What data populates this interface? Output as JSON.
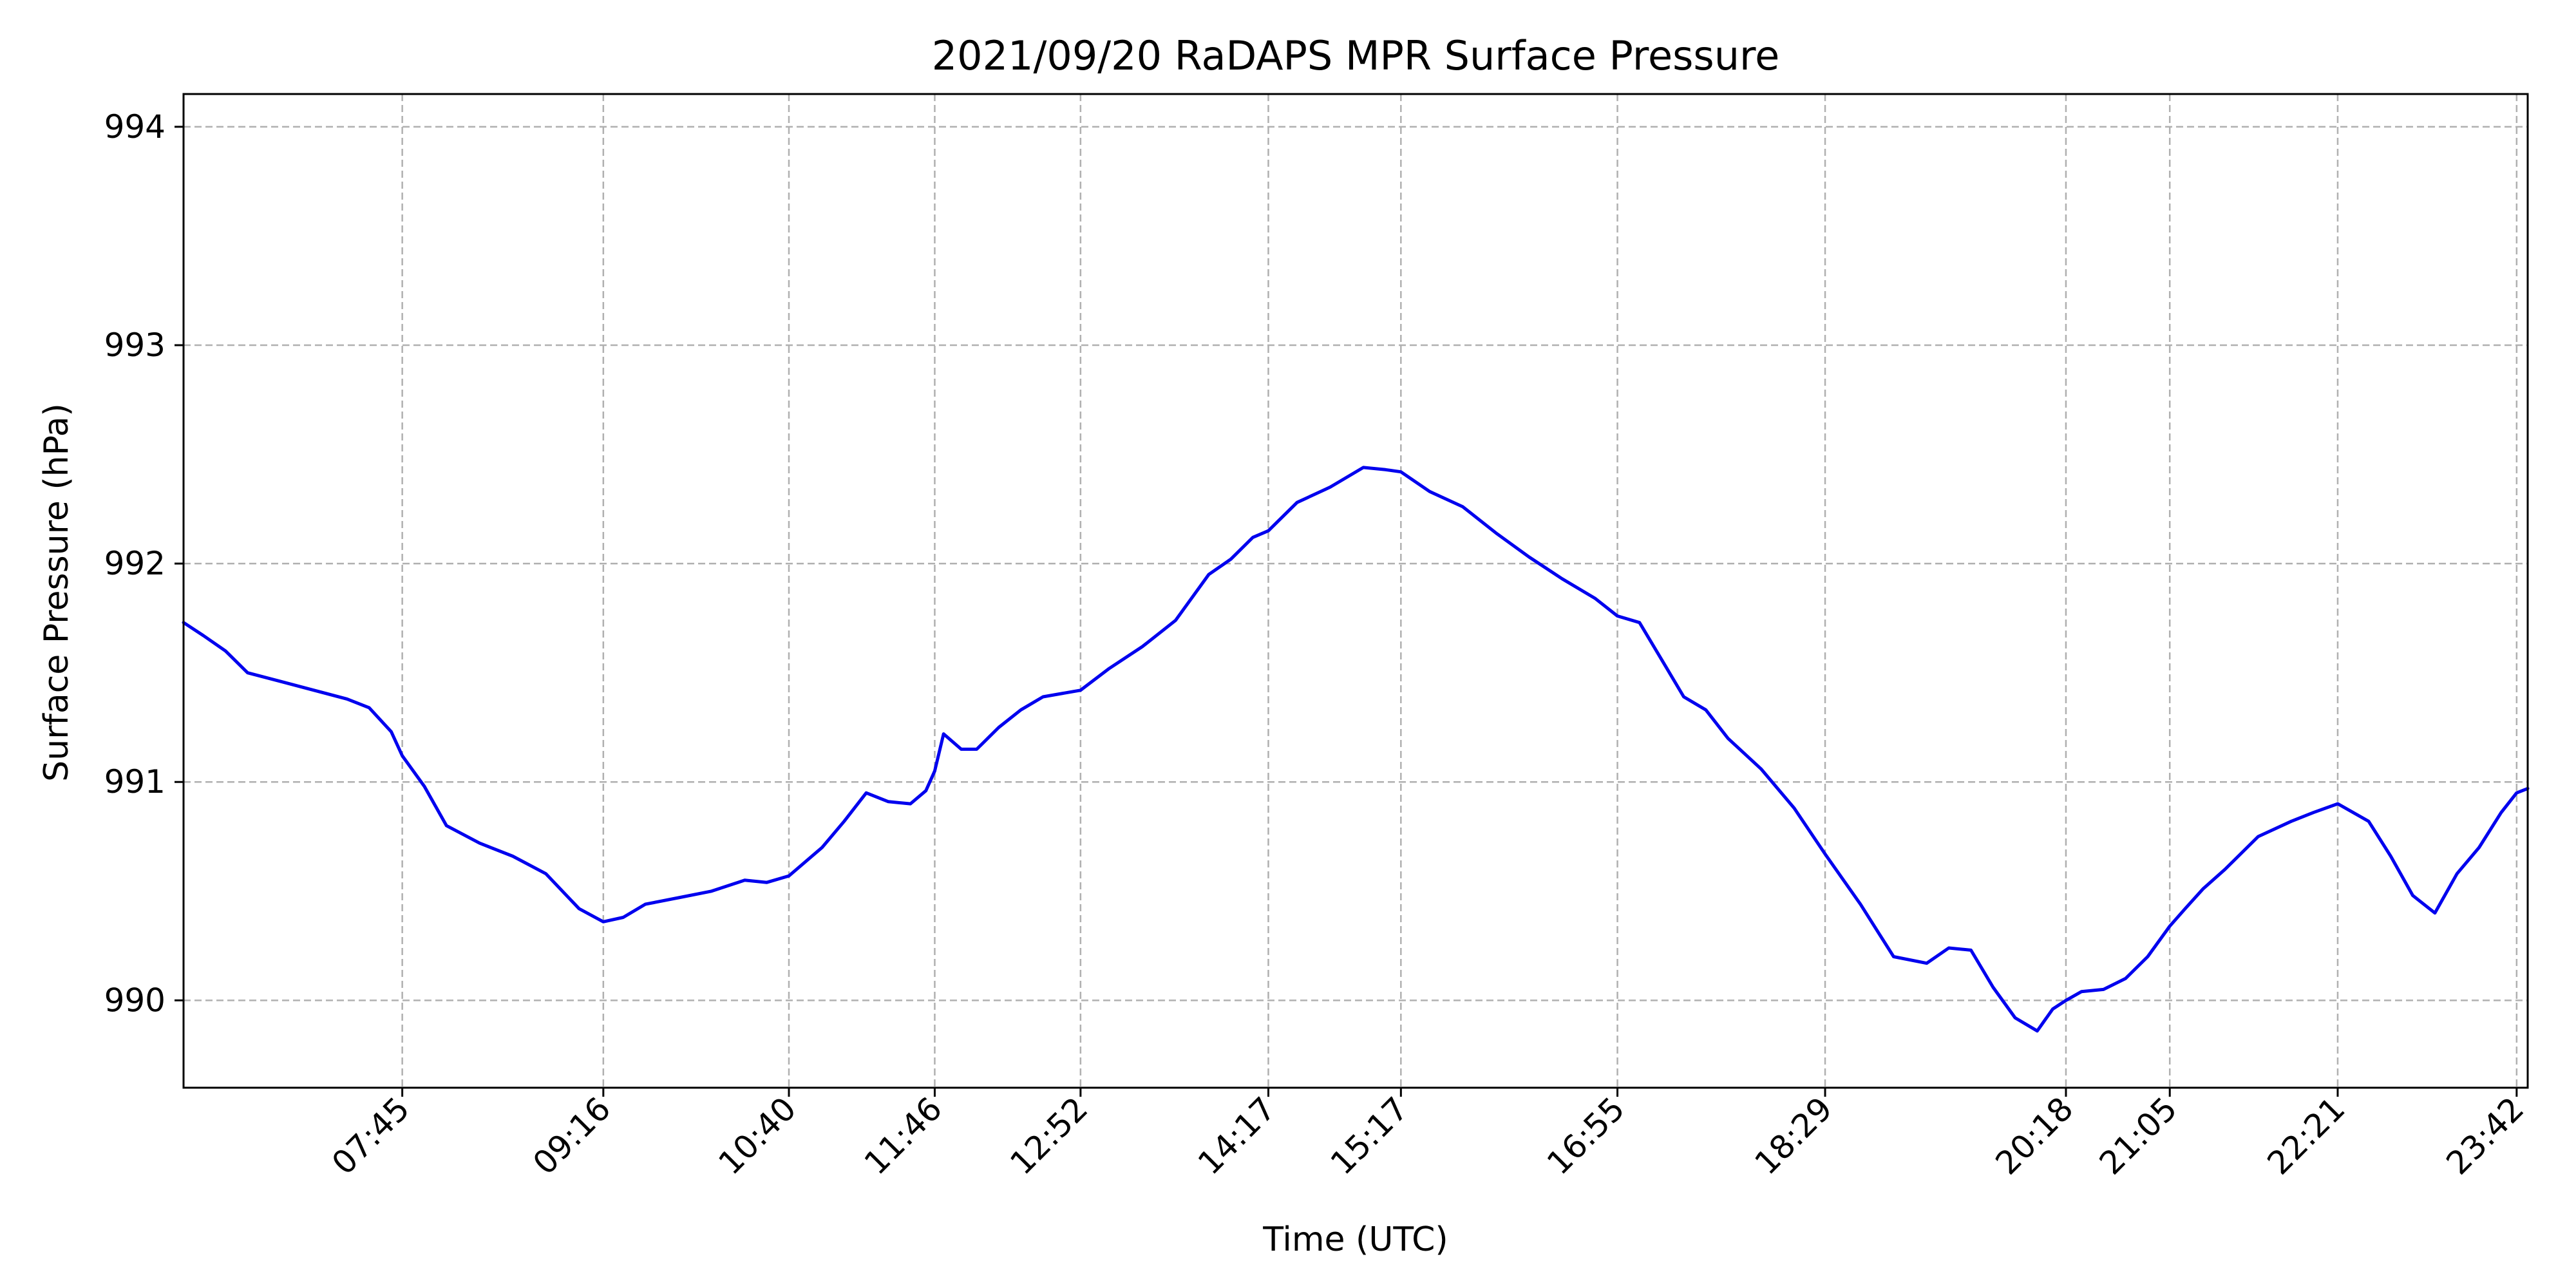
{
  "chart_data": {
    "type": "line",
    "title": "2021/09/20 RaDAPS MPR Surface Pressure",
    "xlabel": "Time (UTC)",
    "ylabel": "Surface Pressure (hPa)",
    "xlim": [
      "06:06",
      "23:47"
    ],
    "ylim": [
      989.6,
      994.15
    ],
    "grid": true,
    "line_color": "#0000ee",
    "grid_color": "#b0b0b0",
    "xticks": [
      "07:45",
      "09:16",
      "10:40",
      "11:46",
      "12:52",
      "14:17",
      "15:17",
      "16:55",
      "18:29",
      "20:18",
      "21:05",
      "22:21",
      "23:42"
    ],
    "yticks": [
      990,
      991,
      992,
      993,
      994
    ],
    "series": [
      {
        "x": [
          "06:06",
          "06:15",
          "06:25",
          "06:35",
          "06:50",
          "07:05",
          "07:20",
          "07:30",
          "07:40",
          "07:45",
          "07:55",
          "08:05",
          "08:20",
          "08:35",
          "08:50",
          "09:05",
          "09:16",
          "09:25",
          "09:35",
          "09:50",
          "10:05",
          "10:20",
          "10:30",
          "10:40",
          "10:55",
          "11:05",
          "11:15",
          "11:25",
          "11:35",
          "11:42",
          "11:46",
          "11:50",
          "11:58",
          "12:05",
          "12:15",
          "12:25",
          "12:35",
          "12:52",
          "13:05",
          "13:20",
          "13:35",
          "13:50",
          "14:00",
          "14:10",
          "14:17",
          "14:30",
          "14:45",
          "15:00",
          "15:10",
          "15:17",
          "15:30",
          "15:45",
          "16:00",
          "16:15",
          "16:30",
          "16:45",
          "16:55",
          "17:05",
          "17:15",
          "17:25",
          "17:35",
          "17:45",
          "18:00",
          "18:15",
          "18:29",
          "18:45",
          "19:00",
          "19:15",
          "19:25",
          "19:35",
          "19:45",
          "19:55",
          "20:05",
          "20:12",
          "20:18",
          "20:25",
          "20:35",
          "20:45",
          "20:55",
          "21:05",
          "21:12",
          "21:20",
          "21:30",
          "21:45",
          "22:00",
          "22:10",
          "22:21",
          "22:35",
          "22:45",
          "22:55",
          "23:05",
          "23:15",
          "23:25",
          "23:35",
          "23:42",
          "23:47"
        ],
        "y": [
          991.73,
          991.67,
          991.6,
          991.5,
          991.46,
          991.42,
          991.38,
          991.34,
          991.23,
          991.12,
          990.98,
          990.8,
          990.72,
          990.66,
          990.58,
          990.42,
          990.36,
          990.38,
          990.44,
          990.47,
          990.5,
          990.55,
          990.54,
          990.57,
          990.7,
          990.82,
          990.95,
          990.91,
          990.9,
          990.96,
          991.05,
          991.22,
          991.15,
          991.15,
          991.25,
          991.33,
          991.39,
          991.42,
          991.52,
          991.62,
          991.74,
          991.95,
          992.02,
          992.12,
          992.15,
          992.28,
          992.35,
          992.44,
          992.43,
          992.42,
          992.33,
          992.26,
          992.14,
          992.03,
          991.93,
          991.84,
          991.76,
          991.73,
          991.56,
          991.39,
          991.33,
          991.2,
          991.06,
          990.88,
          990.67,
          990.44,
          990.2,
          990.17,
          990.24,
          990.23,
          990.06,
          989.92,
          989.86,
          989.96,
          990.0,
          990.04,
          990.05,
          990.1,
          990.2,
          990.34,
          990.42,
          990.51,
          990.6,
          990.75,
          990.82,
          990.86,
          990.9,
          990.82,
          990.66,
          990.48,
          990.4,
          990.58,
          990.7,
          990.86,
          990.95,
          990.97
        ]
      }
    ]
  }
}
